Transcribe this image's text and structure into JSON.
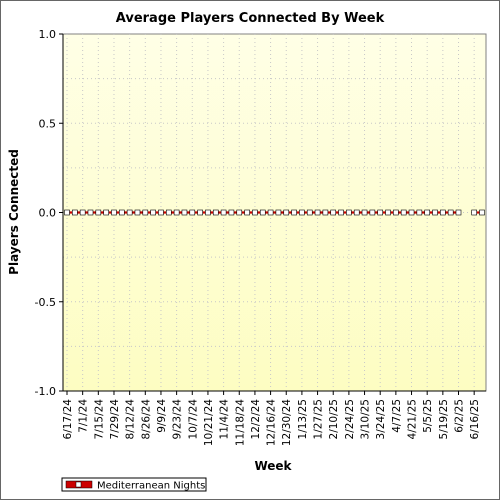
{
  "chart_data": {
    "type": "line",
    "title": "Average Players Connected By Week",
    "xlabel": "Week",
    "ylabel": "Players Connected",
    "ylim": [
      -1.0,
      1.0
    ],
    "yticks": [
      "1.0",
      "0.5",
      "0.0",
      "-0.5",
      "-1.0"
    ],
    "ytick_values": [
      1.0,
      0.5,
      0.0,
      -0.5,
      -1.0
    ],
    "categories": [
      "6/17/24",
      "6/24/24",
      "7/1/24",
      "7/8/24",
      "7/15/24",
      "7/22/24",
      "7/29/24",
      "8/5/24",
      "8/12/24",
      "8/19/24",
      "8/26/24",
      "9/2/24",
      "9/9/24",
      "9/16/24",
      "9/23/24",
      "9/30/24",
      "10/7/24",
      "10/14/24",
      "10/21/24",
      "10/28/24",
      "11/4/24",
      "11/11/24",
      "11/18/24",
      "11/25/24",
      "12/2/24",
      "12/9/24",
      "12/16/24",
      "12/23/24",
      "12/30/24",
      "1/6/25",
      "1/13/25",
      "1/20/25",
      "1/27/25",
      "2/3/25",
      "2/10/25",
      "2/17/25",
      "2/24/25",
      "3/3/25",
      "3/10/25",
      "3/17/25",
      "3/24/25",
      "3/31/25",
      "4/7/25",
      "4/14/25",
      "4/21/25",
      "4/28/25",
      "5/5/25",
      "5/12/25",
      "5/19/25",
      "5/26/25",
      "6/2/25",
      "6/9/25",
      "6/16/25",
      "6/23/25"
    ],
    "visible_tick_labels": [
      "6/17/24",
      "7/1/24",
      "7/15/24",
      "7/29/24",
      "8/12/24",
      "8/26/24",
      "9/9/24",
      "9/23/24",
      "10/7/24",
      "10/21/24",
      "11/4/24",
      "11/18/24",
      "12/2/24",
      "12/16/24",
      "12/30/24",
      "1/13/25",
      "1/27/25",
      "2/10/25",
      "2/24/25",
      "3/10/25",
      "3/24/25",
      "4/7/25",
      "4/21/25",
      "5/5/25",
      "5/19/25",
      "6/2/25",
      "6/16/25"
    ],
    "series": [
      {
        "name": "Mediterranean Nights",
        "color": "#cc0000",
        "values": [
          0,
          0,
          0,
          0,
          0,
          0,
          0,
          0,
          0,
          0,
          0,
          0,
          0,
          0,
          0,
          0,
          0,
          0,
          0,
          0,
          0,
          0,
          0,
          0,
          0,
          0,
          0,
          0,
          0,
          0,
          0,
          0,
          0,
          0,
          0,
          0,
          0,
          0,
          0,
          0,
          0,
          0,
          0,
          0,
          0,
          0,
          0,
          0,
          0,
          0,
          0,
          null,
          0,
          0
        ]
      }
    ],
    "grid": true,
    "legend_position": "bottom-left",
    "colors": {
      "plot_background_top": "#ffffe6",
      "plot_background_bottom": "#fdfdc2",
      "grid": "#c8c8c8"
    }
  }
}
